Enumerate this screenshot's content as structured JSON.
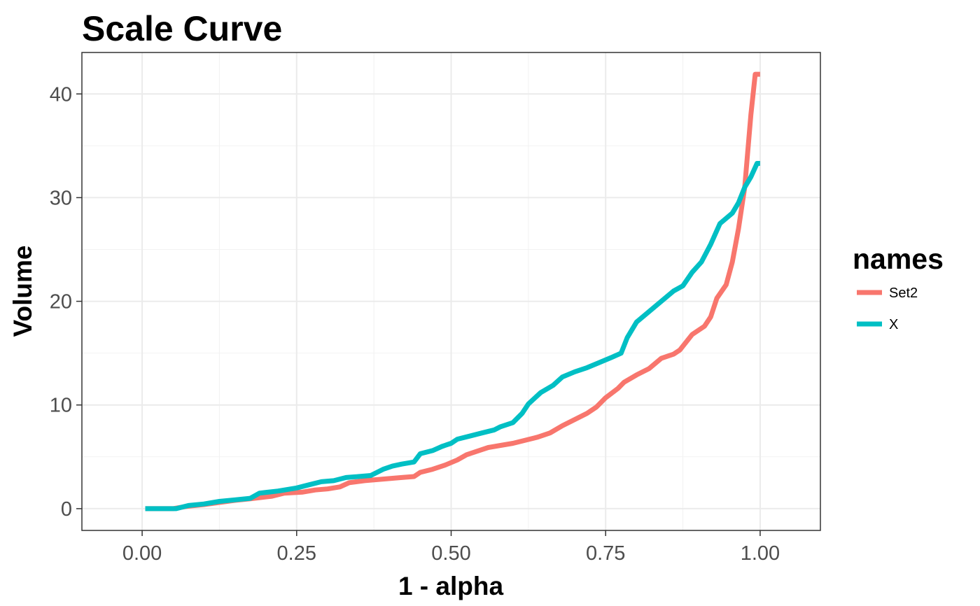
{
  "chart_data": {
    "type": "line",
    "title": "Scale Curve",
    "xlabel": "1 - alpha",
    "ylabel": "Volume",
    "xlim": [
      -0.0975,
      1.0975
    ],
    "ylim": [
      -2.1,
      44.0
    ],
    "x_ticks": [
      {
        "value": 0.0,
        "label": "0.00"
      },
      {
        "value": 0.25,
        "label": "0.25"
      },
      {
        "value": 0.5,
        "label": "0.50"
      },
      {
        "value": 0.75,
        "label": "0.75"
      },
      {
        "value": 1.0,
        "label": "1.00"
      }
    ],
    "y_ticks": [
      {
        "value": 0,
        "label": "0"
      },
      {
        "value": 10,
        "label": "10"
      },
      {
        "value": 20,
        "label": "20"
      },
      {
        "value": 30,
        "label": "30"
      },
      {
        "value": 40,
        "label": "40"
      }
    ],
    "grid": true,
    "legend": {
      "title": "names",
      "position": "right"
    },
    "series": [
      {
        "name": "Set2",
        "color": "#F8766D",
        "points": [
          [
            0.005,
            0.0
          ],
          [
            0.05,
            0.0
          ],
          [
            0.07,
            0.2
          ],
          [
            0.1,
            0.4
          ],
          [
            0.125,
            0.6
          ],
          [
            0.15,
            0.8
          ],
          [
            0.175,
            0.95
          ],
          [
            0.21,
            1.2
          ],
          [
            0.23,
            1.5
          ],
          [
            0.26,
            1.6
          ],
          [
            0.28,
            1.8
          ],
          [
            0.3,
            1.9
          ],
          [
            0.32,
            2.1
          ],
          [
            0.335,
            2.5
          ],
          [
            0.36,
            2.7
          ],
          [
            0.38,
            2.8
          ],
          [
            0.4,
            2.9
          ],
          [
            0.42,
            3.0
          ],
          [
            0.44,
            3.1
          ],
          [
            0.45,
            3.5
          ],
          [
            0.47,
            3.8
          ],
          [
            0.49,
            4.2
          ],
          [
            0.51,
            4.7
          ],
          [
            0.525,
            5.2
          ],
          [
            0.545,
            5.6
          ],
          [
            0.56,
            5.9
          ],
          [
            0.58,
            6.1
          ],
          [
            0.6,
            6.3
          ],
          [
            0.62,
            6.6
          ],
          [
            0.64,
            6.9
          ],
          [
            0.66,
            7.3
          ],
          [
            0.68,
            8.0
          ],
          [
            0.7,
            8.6
          ],
          [
            0.72,
            9.2
          ],
          [
            0.735,
            9.8
          ],
          [
            0.75,
            10.7
          ],
          [
            0.77,
            11.6
          ],
          [
            0.78,
            12.2
          ],
          [
            0.8,
            12.9
          ],
          [
            0.82,
            13.5
          ],
          [
            0.84,
            14.5
          ],
          [
            0.86,
            14.9
          ],
          [
            0.87,
            15.3
          ],
          [
            0.89,
            16.8
          ],
          [
            0.91,
            17.6
          ],
          [
            0.92,
            18.5
          ],
          [
            0.93,
            20.3
          ],
          [
            0.945,
            21.6
          ],
          [
            0.955,
            23.8
          ],
          [
            0.965,
            27.0
          ],
          [
            0.975,
            31.0
          ],
          [
            0.98,
            34.5
          ],
          [
            0.985,
            38.0
          ],
          [
            0.992,
            41.9
          ],
          [
            1.0,
            41.9
          ]
        ]
      },
      {
        "name": "X",
        "color": "#00BFC4",
        "points": [
          [
            0.005,
            0.0
          ],
          [
            0.055,
            0.0
          ],
          [
            0.075,
            0.3
          ],
          [
            0.1,
            0.45
          ],
          [
            0.125,
            0.7
          ],
          [
            0.15,
            0.85
          ],
          [
            0.175,
            1.0
          ],
          [
            0.19,
            1.5
          ],
          [
            0.22,
            1.7
          ],
          [
            0.25,
            2.0
          ],
          [
            0.27,
            2.3
          ],
          [
            0.29,
            2.6
          ],
          [
            0.31,
            2.7
          ],
          [
            0.33,
            3.0
          ],
          [
            0.35,
            3.1
          ],
          [
            0.37,
            3.2
          ],
          [
            0.39,
            3.8
          ],
          [
            0.405,
            4.1
          ],
          [
            0.42,
            4.3
          ],
          [
            0.44,
            4.5
          ],
          [
            0.45,
            5.3
          ],
          [
            0.47,
            5.6
          ],
          [
            0.485,
            6.0
          ],
          [
            0.5,
            6.3
          ],
          [
            0.51,
            6.7
          ],
          [
            0.53,
            7.0
          ],
          [
            0.55,
            7.3
          ],
          [
            0.57,
            7.6
          ],
          [
            0.58,
            7.9
          ],
          [
            0.6,
            8.3
          ],
          [
            0.615,
            9.2
          ],
          [
            0.625,
            10.1
          ],
          [
            0.645,
            11.2
          ],
          [
            0.665,
            11.9
          ],
          [
            0.68,
            12.7
          ],
          [
            0.7,
            13.2
          ],
          [
            0.72,
            13.6
          ],
          [
            0.74,
            14.1
          ],
          [
            0.76,
            14.6
          ],
          [
            0.775,
            15.0
          ],
          [
            0.785,
            16.5
          ],
          [
            0.8,
            18.0
          ],
          [
            0.82,
            19.0
          ],
          [
            0.84,
            20.0
          ],
          [
            0.86,
            21.0
          ],
          [
            0.875,
            21.5
          ],
          [
            0.89,
            22.8
          ],
          [
            0.905,
            23.8
          ],
          [
            0.92,
            25.5
          ],
          [
            0.935,
            27.5
          ],
          [
            0.955,
            28.5
          ],
          [
            0.965,
            29.5
          ],
          [
            0.975,
            31.0
          ],
          [
            0.985,
            32.0
          ],
          [
            0.995,
            33.3
          ],
          [
            1.0,
            33.3
          ]
        ]
      }
    ]
  }
}
